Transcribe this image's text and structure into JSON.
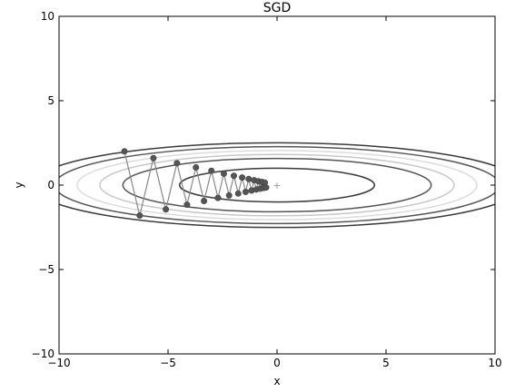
{
  "chart_data": {
    "type": "line",
    "title": "SGD",
    "xlabel": "x",
    "ylabel": "y",
    "xlim": [
      -10,
      10
    ],
    "ylim": [
      -10,
      10
    ],
    "xticks": [
      -10,
      -5,
      0,
      5,
      10
    ],
    "yticks": [
      -10,
      -5,
      0,
      5,
      10
    ],
    "xtick_labels": [
      "−10",
      "−5",
      "0",
      "5",
      "10"
    ],
    "ytick_labels": [
      "−10",
      "−5",
      "0",
      "5",
      "10"
    ],
    "grid": false,
    "function": "f(x, y) = x^2/20 + y^2",
    "contours": [
      {
        "level": 1.0,
        "color": "#3a3a3a"
      },
      {
        "level": 2.5,
        "color": "#555555"
      },
      {
        "level": 3.3,
        "color": "#c8c8c8"
      },
      {
        "level": 4.2,
        "color": "#dcdcdc"
      },
      {
        "level": 5.2,
        "color": "#555555"
      },
      {
        "level": 6.3,
        "color": "#3a3a3a"
      }
    ],
    "minimum_marker": {
      "x": 0,
      "y": 0,
      "symbol": "+",
      "color": "#999999"
    },
    "series": [
      {
        "color": "#555555",
        "x": [
          -7.0,
          -6.3,
          -5.67,
          -5.1,
          -4.59,
          -4.13,
          -3.72,
          -3.35,
          -3.01,
          -2.71,
          -2.44,
          -2.2,
          -1.98,
          -1.78,
          -1.6,
          -1.44,
          -1.3,
          -1.17,
          -1.05,
          -0.95,
          -0.85,
          -0.77,
          -0.69,
          -0.62,
          -0.56,
          -0.5
        ],
        "y": [
          2.0,
          -1.8,
          1.6,
          -1.44,
          1.3,
          -1.16,
          1.05,
          -0.94,
          0.85,
          -0.76,
          0.68,
          -0.61,
          0.55,
          -0.5,
          0.45,
          -0.4,
          0.36,
          -0.32,
          0.29,
          -0.26,
          0.23,
          -0.21,
          0.19,
          -0.17,
          0.15,
          -0.14
        ]
      }
    ]
  }
}
